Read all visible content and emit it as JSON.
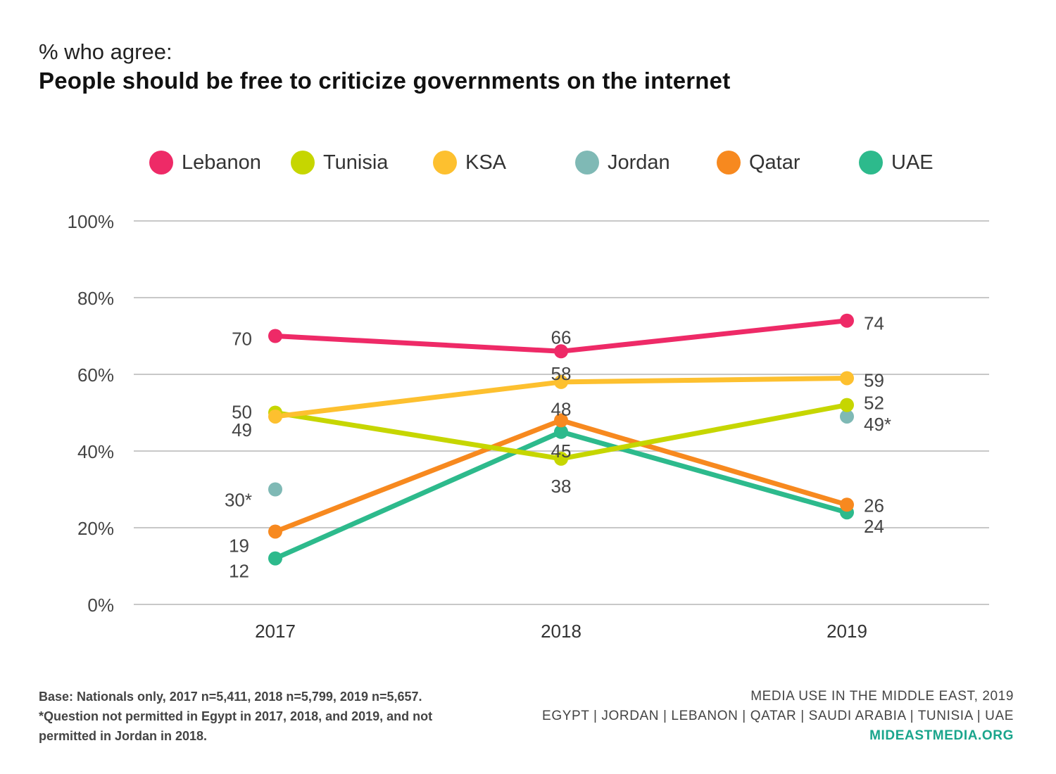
{
  "header": {
    "subtitle": "% who agree:",
    "title": "People should be free to criticize governments on the internet"
  },
  "footer": {
    "base_note": "Base: Nationals only, 2017 n=5,411, 2018 n=5,799, 2019 n=5,657.",
    "question_note": "*Question not permitted in Egypt in 2017, 2018, and 2019, and not permitted in Jordan in 2018.",
    "source_line1": "MEDIA USE IN THE MIDDLE EAST, 2019",
    "source_line2": "EGYPT | JORDAN | LEBANON | QATAR | SAUDI ARABIA | TUNISIA | UAE",
    "website": "MIDEASTMEDIA.ORG",
    "website_color": "#1aa58c"
  },
  "chart_data": {
    "type": "line",
    "title": "People should be free to criticize governments on the internet",
    "subtitle": "% who agree:",
    "xlabel": "",
    "ylabel": "",
    "categories": [
      "2017",
      "2018",
      "2019"
    ],
    "ylim": [
      0,
      100
    ],
    "yticks": [
      "0%",
      "20%",
      "40%",
      "60%",
      "80%",
      "100%"
    ],
    "ytick_values": [
      0,
      20,
      40,
      60,
      80,
      100
    ],
    "grid": true,
    "legend_position": "top",
    "series": [
      {
        "name": "Lebanon",
        "color": "#ee2a67",
        "values": [
          70,
          66,
          74
        ],
        "labels": [
          "70",
          "66",
          "74"
        ]
      },
      {
        "name": "Tunisia",
        "color": "#c6d600",
        "values": [
          50,
          38,
          52
        ],
        "labels": [
          "50",
          "38",
          "52"
        ]
      },
      {
        "name": "KSA",
        "color": "#fdc02f",
        "values": [
          49,
          58,
          59
        ],
        "labels": [
          "49",
          "58",
          "59"
        ]
      },
      {
        "name": "Jordan",
        "color": "#7fb9b5",
        "values": [
          30,
          null,
          49
        ],
        "labels": [
          "30*",
          "",
          "49*"
        ],
        "markers_only": true
      },
      {
        "name": "Qatar",
        "color": "#f7891f",
        "values": [
          19,
          48,
          26
        ],
        "labels": [
          "19",
          "48",
          "26"
        ]
      },
      {
        "name": "UAE",
        "color": "#2dba8c",
        "values": [
          12,
          45,
          24
        ],
        "labels": [
          "12",
          "45",
          "24"
        ]
      }
    ]
  }
}
